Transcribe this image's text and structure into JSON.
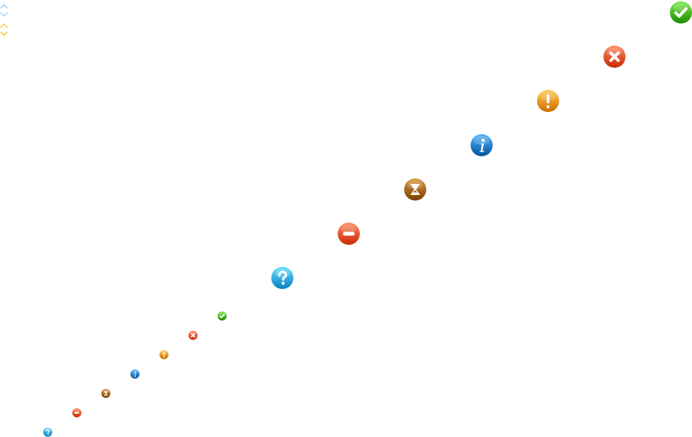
{
  "sprite": {
    "arrows": [
      {
        "name": "arrow-up-blue-icon",
        "color": "#a9d4f3",
        "direction": "up"
      },
      {
        "name": "arrow-down-blue-icon",
        "color": "#a9d4f3",
        "direction": "down"
      },
      {
        "name": "arrow-up-yellow-icon",
        "color": "#f5cf3c",
        "direction": "up"
      },
      {
        "name": "arrow-down-yellow-icon",
        "color": "#f5cf3c",
        "direction": "down"
      }
    ],
    "large_icons": [
      {
        "name": "success-check-icon",
        "color": "#44b316",
        "glyph": "check"
      },
      {
        "name": "error-x-icon",
        "color": "#f0522a",
        "glyph": "x"
      },
      {
        "name": "warning-exclamation-icon",
        "color": "#f7941d",
        "glyph": "exclaim"
      },
      {
        "name": "info-i-icon",
        "color": "#1e7cc4",
        "glyph": "info"
      },
      {
        "name": "pending-hourglass-icon",
        "color": "#a2640a",
        "glyph": "hourglass"
      },
      {
        "name": "blocked-minus-icon",
        "color": "#f0522a",
        "glyph": "minus"
      },
      {
        "name": "help-question-icon",
        "color": "#2ea6e8",
        "glyph": "question"
      }
    ],
    "small_icons": [
      {
        "name": "success-check-small-icon",
        "color": "#44b316",
        "glyph": "check"
      },
      {
        "name": "error-x-small-icon",
        "color": "#f0522a",
        "glyph": "x"
      },
      {
        "name": "warning-exclamation-small-icon",
        "color": "#f7941d",
        "glyph": "exclaim"
      },
      {
        "name": "info-i-small-icon",
        "color": "#1e7cc4",
        "glyph": "info"
      },
      {
        "name": "pending-hourglass-small-icon",
        "color": "#a2640a",
        "glyph": "hourglass"
      },
      {
        "name": "blocked-minus-small-icon",
        "color": "#f0522a",
        "glyph": "minus"
      },
      {
        "name": "help-question-small-icon",
        "color": "#2ea6e8",
        "glyph": "question"
      }
    ]
  }
}
